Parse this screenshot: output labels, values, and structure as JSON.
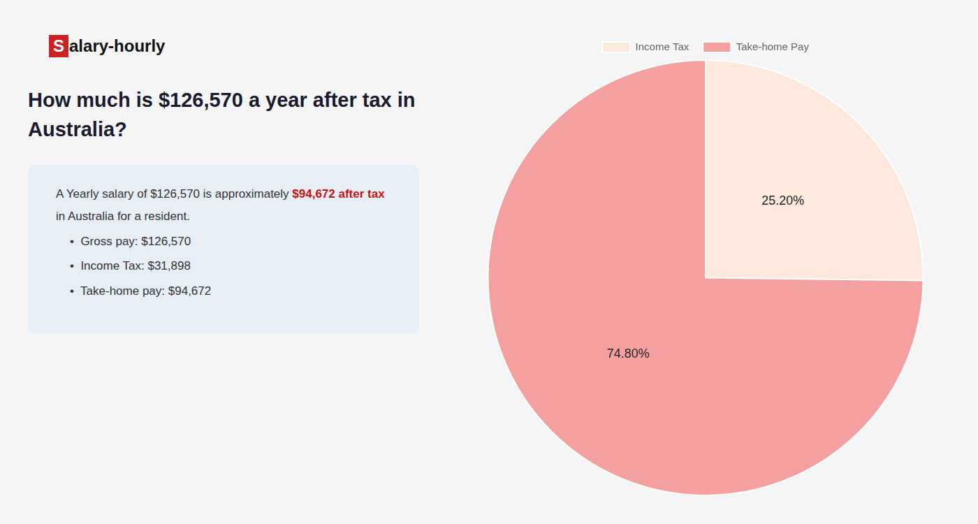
{
  "chart_data": {
    "type": "pie",
    "title": [
      "How much is $126,570 a year after tax in",
      "Australia?"
    ],
    "categories": [
      "Income Tax",
      "Take-home Pay"
    ],
    "values": [
      25.2,
      74.8
    ],
    "value_labels": [
      "25.20%",
      "74.80%"
    ],
    "data_labels": true,
    "colors": [
      "#fce8dc",
      "#f4a0a0"
    ],
    "legend": "top",
    "annotations": [
      [
        {
          "text": "S",
          "color": "#ffffff",
          "background": "#cc2222"
        },
        {
          "text": "alary-hourly",
          "color": "#111111"
        }
      ],
      [
        {
          "text": "A Yearly salary of $126,570 is approximately ",
          "color": "#333333"
        },
        {
          "text": "$94,672 after tax",
          "color": "#cc1111",
          "bold": true
        }
      ],
      [
        {
          "text": "in Australia for a resident.",
          "color": "#333333"
        }
      ],
      [
        {
          "text": "•  Gross pay: $126,570",
          "color": "#333333"
        }
      ],
      [
        {
          "text": "•  Income Tax: $31,898",
          "color": "#333333"
        }
      ],
      [
        {
          "text": "•  Take-home pay: $94,672",
          "color": "#333333"
        }
      ]
    ]
  }
}
